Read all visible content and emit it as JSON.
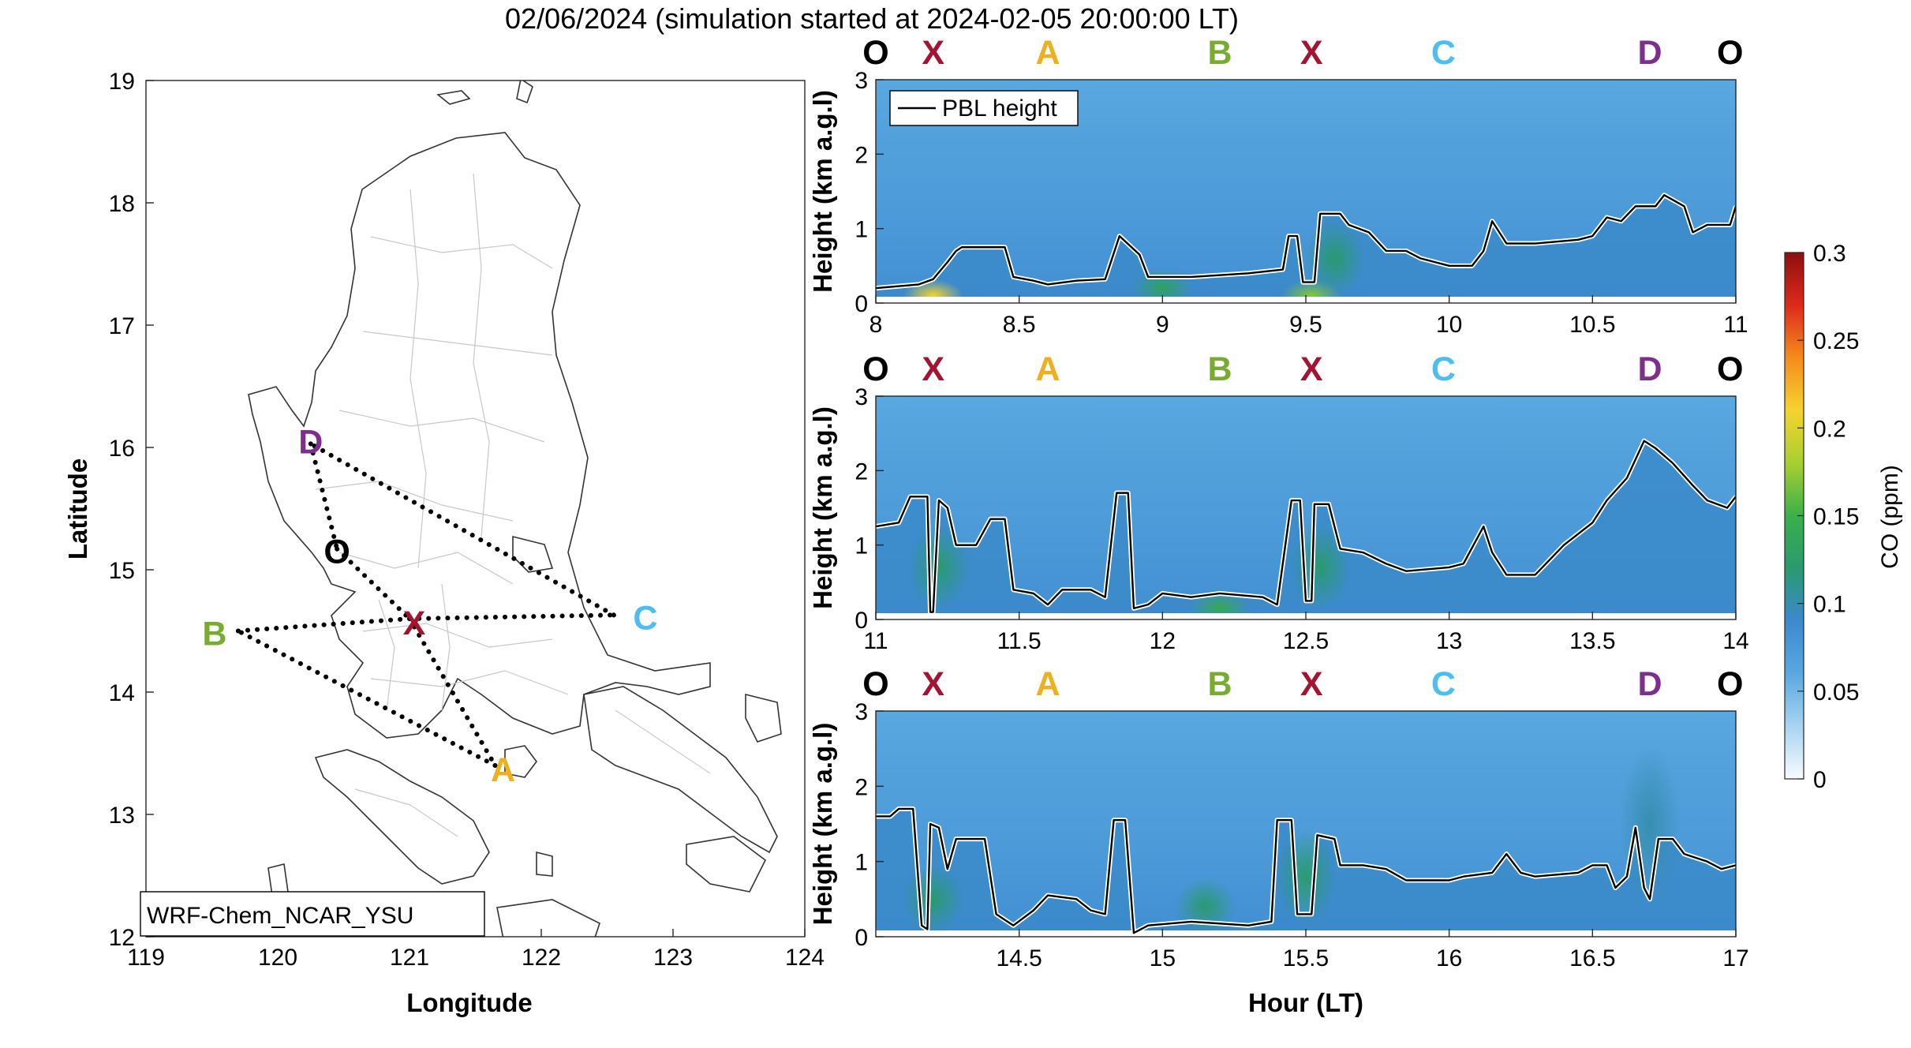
{
  "title": "02/06/2024 (simulation started at 2024-02-05 20:00:00 LT)",
  "colors": {
    "O": "#000000",
    "X": "#a2142f",
    "A": "#edb120",
    "B": "#77ac30",
    "C": "#4dbeee",
    "D": "#7e2f8e",
    "pbl_line": "#000000",
    "pbl_halo": "#ffffff"
  },
  "chart_data": [
    {
      "type": "map",
      "xlabel": "Longitude",
      "ylabel": "Latitude",
      "xlim": [
        119,
        124
      ],
      "ylim": [
        12,
        19
      ],
      "xticks": [
        "119",
        "120",
        "121",
        "122",
        "123",
        "124"
      ],
      "yticks": [
        "12",
        "13",
        "14",
        "15",
        "16",
        "17",
        "18",
        "19"
      ],
      "model_label": "WRF-Chem_NCAR_YSU",
      "sites": [
        {
          "name": "O",
          "lon": 120.45,
          "lat": 15.17
        },
        {
          "name": "X",
          "lon": 121.0,
          "lat": 14.6
        },
        {
          "name": "A",
          "lon": 121.65,
          "lat": 13.4
        },
        {
          "name": "B",
          "lon": 119.7,
          "lat": 14.5
        },
        {
          "name": "C",
          "lon": 122.55,
          "lat": 14.63
        },
        {
          "name": "D",
          "lon": 120.25,
          "lat": 16.03
        }
      ],
      "route": [
        "X",
        "A",
        "B",
        "X",
        "C",
        "D",
        "O",
        "X"
      ]
    },
    {
      "type": "heatmap",
      "ylabel": "Height (km a.g.l)",
      "xlim": [
        8,
        11
      ],
      "ylim": [
        0,
        3
      ],
      "xticks": [
        "8",
        "8.5",
        "9",
        "9.5",
        "10",
        "10.5",
        "11"
      ],
      "yticks": [
        "0",
        "1",
        "2",
        "3"
      ],
      "legend": "PBL height",
      "site_markers": [
        {
          "label": "O",
          "hour": 8.0
        },
        {
          "label": "X",
          "hour": 8.2
        },
        {
          "label": "A",
          "hour": 8.6
        },
        {
          "label": "B",
          "hour": 9.2
        },
        {
          "label": "X",
          "hour": 9.52
        },
        {
          "label": "C",
          "hour": 9.98
        },
        {
          "label": "D",
          "hour": 10.7
        },
        {
          "label": "O",
          "hour": 10.98
        }
      ],
      "pbl_height": [
        [
          8.0,
          0.2
        ],
        [
          8.15,
          0.25
        ],
        [
          8.2,
          0.32
        ],
        [
          8.25,
          0.55
        ],
        [
          8.28,
          0.7
        ],
        [
          8.3,
          0.75
        ],
        [
          8.45,
          0.75
        ],
        [
          8.48,
          0.35
        ],
        [
          8.55,
          0.3
        ],
        [
          8.6,
          0.25
        ],
        [
          8.7,
          0.3
        ],
        [
          8.8,
          0.32
        ],
        [
          8.85,
          0.9
        ],
        [
          8.92,
          0.65
        ],
        [
          8.95,
          0.35
        ],
        [
          9.1,
          0.35
        ],
        [
          9.3,
          0.4
        ],
        [
          9.42,
          0.45
        ],
        [
          9.44,
          0.9
        ],
        [
          9.47,
          0.9
        ],
        [
          9.49,
          0.28
        ],
        [
          9.53,
          0.28
        ],
        [
          9.55,
          1.2
        ],
        [
          9.62,
          1.2
        ],
        [
          9.65,
          1.05
        ],
        [
          9.72,
          0.95
        ],
        [
          9.78,
          0.7
        ],
        [
          9.85,
          0.7
        ],
        [
          9.9,
          0.6
        ],
        [
          10.0,
          0.5
        ],
        [
          10.08,
          0.5
        ],
        [
          10.12,
          0.7
        ],
        [
          10.15,
          1.1
        ],
        [
          10.2,
          0.8
        ],
        [
          10.3,
          0.8
        ],
        [
          10.45,
          0.85
        ],
        [
          10.5,
          0.9
        ],
        [
          10.55,
          1.15
        ],
        [
          10.6,
          1.1
        ],
        [
          10.65,
          1.3
        ],
        [
          10.72,
          1.3
        ],
        [
          10.75,
          1.45
        ],
        [
          10.82,
          1.3
        ],
        [
          10.85,
          0.95
        ],
        [
          10.9,
          1.05
        ],
        [
          10.98,
          1.05
        ],
        [
          11.0,
          1.3
        ]
      ],
      "co_hotspots_ppm": [
        {
          "hour": 8.2,
          "height": 0.1,
          "value": 0.21
        },
        {
          "hour": 9.0,
          "height": 0.2,
          "value": 0.13
        },
        {
          "hour": 9.52,
          "height": 0.1,
          "value": 0.17
        },
        {
          "hour": 9.6,
          "height": 0.6,
          "value": 0.12
        }
      ]
    },
    {
      "type": "heatmap",
      "ylabel": "Height (km a.g.l)",
      "xlim": [
        11,
        14
      ],
      "ylim": [
        0,
        3
      ],
      "xticks": [
        "11",
        "11.5",
        "12",
        "12.5",
        "13",
        "13.5",
        "14"
      ],
      "yticks": [
        "0",
        "1",
        "2",
        "3"
      ],
      "site_markers": [
        {
          "label": "O",
          "hour": 11.0
        },
        {
          "label": "X",
          "hour": 11.2
        },
        {
          "label": "A",
          "hour": 11.6
        },
        {
          "label": "B",
          "hour": 12.2
        },
        {
          "label": "X",
          "hour": 12.52
        },
        {
          "label": "C",
          "hour": 12.98
        },
        {
          "label": "D",
          "hour": 13.7
        },
        {
          "label": "O",
          "hour": 13.98
        }
      ],
      "pbl_height": [
        [
          11.0,
          1.25
        ],
        [
          11.08,
          1.3
        ],
        [
          11.12,
          1.65
        ],
        [
          11.18,
          1.65
        ],
        [
          11.19,
          0.1
        ],
        [
          11.2,
          0.1
        ],
        [
          11.22,
          1.6
        ],
        [
          11.25,
          1.5
        ],
        [
          11.28,
          1.0
        ],
        [
          11.35,
          1.0
        ],
        [
          11.4,
          1.35
        ],
        [
          11.45,
          1.35
        ],
        [
          11.48,
          0.4
        ],
        [
          11.55,
          0.35
        ],
        [
          11.6,
          0.2
        ],
        [
          11.65,
          0.4
        ],
        [
          11.75,
          0.4
        ],
        [
          11.8,
          0.3
        ],
        [
          11.84,
          1.7
        ],
        [
          11.88,
          1.7
        ],
        [
          11.9,
          0.15
        ],
        [
          11.95,
          0.2
        ],
        [
          12.0,
          0.35
        ],
        [
          12.1,
          0.3
        ],
        [
          12.2,
          0.35
        ],
        [
          12.35,
          0.3
        ],
        [
          12.4,
          0.2
        ],
        [
          12.45,
          1.6
        ],
        [
          12.48,
          1.6
        ],
        [
          12.5,
          0.25
        ],
        [
          12.52,
          0.25
        ],
        [
          12.53,
          1.55
        ],
        [
          12.58,
          1.55
        ],
        [
          12.62,
          0.95
        ],
        [
          12.7,
          0.9
        ],
        [
          12.78,
          0.75
        ],
        [
          12.85,
          0.65
        ],
        [
          13.0,
          0.7
        ],
        [
          13.05,
          0.75
        ],
        [
          13.12,
          1.25
        ],
        [
          13.15,
          0.9
        ],
        [
          13.2,
          0.6
        ],
        [
          13.3,
          0.6
        ],
        [
          13.4,
          1.0
        ],
        [
          13.5,
          1.3
        ],
        [
          13.55,
          1.6
        ],
        [
          13.62,
          1.9
        ],
        [
          13.68,
          2.4
        ],
        [
          13.72,
          2.3
        ],
        [
          13.78,
          2.1
        ],
        [
          13.85,
          1.8
        ],
        [
          13.9,
          1.6
        ],
        [
          13.97,
          1.5
        ],
        [
          14.0,
          1.65
        ]
      ],
      "co_hotspots_ppm": [
        {
          "hour": 11.22,
          "height": 0.7,
          "value": 0.12
        },
        {
          "hour": 12.2,
          "height": 0.15,
          "value": 0.14
        },
        {
          "hour": 12.55,
          "height": 0.7,
          "value": 0.12
        }
      ]
    },
    {
      "type": "heatmap",
      "xlabel": "Hour (LT)",
      "ylabel": "Height (km a.g.l)",
      "xlim": [
        14,
        17
      ],
      "ylim": [
        0,
        3
      ],
      "xticks": [
        "14.5",
        "15",
        "15.5",
        "16",
        "16.5",
        "17"
      ],
      "yticks": [
        "0",
        "1",
        "2",
        "3"
      ],
      "site_markers": [
        {
          "label": "O",
          "hour": 14.0
        },
        {
          "label": "X",
          "hour": 14.2
        },
        {
          "label": "A",
          "hour": 14.6
        },
        {
          "label": "B",
          "hour": 15.2
        },
        {
          "label": "X",
          "hour": 15.52
        },
        {
          "label": "C",
          "hour": 15.98
        },
        {
          "label": "D",
          "hour": 16.7
        },
        {
          "label": "O",
          "hour": 16.98
        }
      ],
      "pbl_height": [
        [
          14.0,
          1.6
        ],
        [
          14.05,
          1.6
        ],
        [
          14.08,
          1.7
        ],
        [
          14.13,
          1.7
        ],
        [
          14.16,
          0.15
        ],
        [
          14.18,
          0.1
        ],
        [
          14.19,
          1.5
        ],
        [
          14.22,
          1.45
        ],
        [
          14.25,
          0.9
        ],
        [
          14.28,
          1.3
        ],
        [
          14.35,
          1.3
        ],
        [
          14.38,
          1.3
        ],
        [
          14.42,
          0.3
        ],
        [
          14.48,
          0.15
        ],
        [
          14.55,
          0.35
        ],
        [
          14.6,
          0.55
        ],
        [
          14.7,
          0.5
        ],
        [
          14.75,
          0.35
        ],
        [
          14.8,
          0.3
        ],
        [
          14.83,
          1.55
        ],
        [
          14.87,
          1.55
        ],
        [
          14.9,
          0.05
        ],
        [
          14.95,
          0.15
        ],
        [
          15.1,
          0.2
        ],
        [
          15.3,
          0.15
        ],
        [
          15.38,
          0.2
        ],
        [
          15.4,
          1.55
        ],
        [
          15.45,
          1.55
        ],
        [
          15.47,
          0.3
        ],
        [
          15.52,
          0.3
        ],
        [
          15.54,
          1.35
        ],
        [
          15.6,
          1.3
        ],
        [
          15.62,
          0.95
        ],
        [
          15.7,
          0.95
        ],
        [
          15.78,
          0.9
        ],
        [
          15.85,
          0.75
        ],
        [
          16.0,
          0.75
        ],
        [
          16.05,
          0.8
        ],
        [
          16.15,
          0.85
        ],
        [
          16.2,
          1.1
        ],
        [
          16.25,
          0.85
        ],
        [
          16.3,
          0.8
        ],
        [
          16.45,
          0.85
        ],
        [
          16.5,
          0.95
        ],
        [
          16.55,
          0.95
        ],
        [
          16.58,
          0.65
        ],
        [
          16.62,
          0.8
        ],
        [
          16.65,
          1.45
        ],
        [
          16.68,
          0.65
        ],
        [
          16.7,
          0.5
        ],
        [
          16.73,
          1.3
        ],
        [
          16.78,
          1.3
        ],
        [
          16.82,
          1.1
        ],
        [
          16.9,
          1.0
        ],
        [
          16.95,
          0.9
        ],
        [
          17.0,
          0.95
        ]
      ],
      "co_hotspots_ppm": [
        {
          "hour": 14.2,
          "height": 0.5,
          "value": 0.12
        },
        {
          "hour": 15.15,
          "height": 0.4,
          "value": 0.12
        },
        {
          "hour": 15.5,
          "height": 0.8,
          "value": 0.12
        },
        {
          "hour": 16.7,
          "height": 1.5,
          "value": 0.1
        }
      ]
    }
  ],
  "colorbar": {
    "label": "CO (ppm)",
    "min": 0,
    "max": 0.3,
    "ticks": [
      "0",
      "0.05",
      "0.1",
      "0.15",
      "0.2",
      "0.25",
      "0.3"
    ],
    "colormap": [
      "#f7fbff",
      "#a8d4f0",
      "#5aa8e0",
      "#3c89cf",
      "#2a9a6e",
      "#3ab04a",
      "#a8cf30",
      "#f5d32e",
      "#f58c1c",
      "#dc2a1d",
      "#8e0f0f"
    ]
  }
}
